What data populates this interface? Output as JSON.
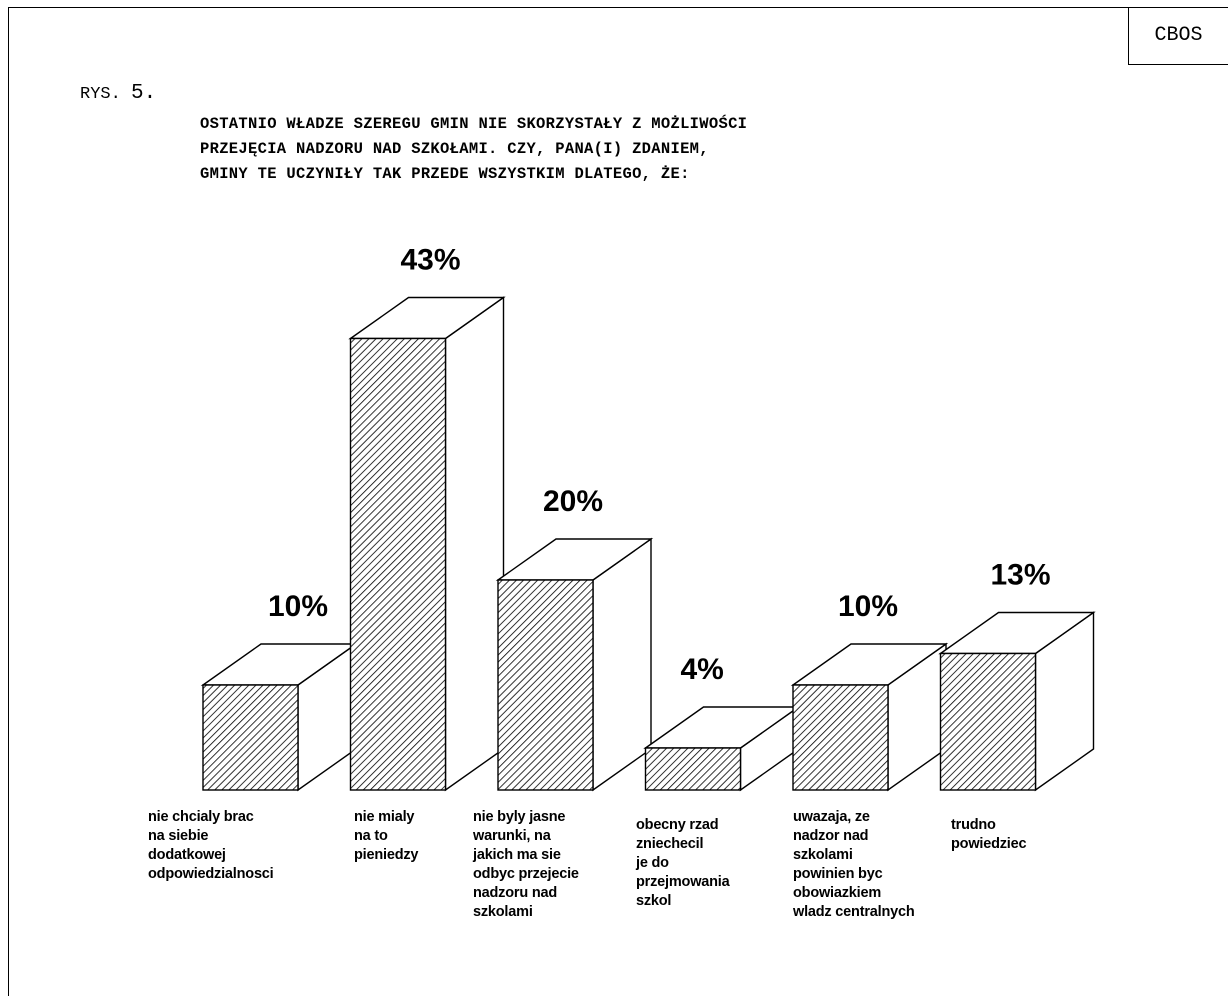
{
  "corner_label": "CBOS",
  "figure_label": "RYS.",
  "figure_number": "5.",
  "question_lines": [
    "OSTATNIO WŁADZE SZEREGU GMIN NIE SKORZYSTAŁY Z MOŻLIWOŚCI",
    "PRZEJĘCIA NADZORU NAD SZKOŁAMI. CZY, PANA(I) ZDANIEM,",
    "GMINY TE UCZYNIŁY TAK PRZEDE WSZYSTKIM DLATEGO, ŻE:"
  ],
  "chart_data": {
    "type": "bar",
    "style": "3d-hatched",
    "unit": "%",
    "categories": [
      [
        "nie chcialy brac",
        "na siebie",
        "dodatkowej",
        "odpowiedzialnosci"
      ],
      [
        "nie mialy",
        "na to",
        "pieniedzy"
      ],
      [
        "nie byly jasne",
        "warunki, na",
        "jakich ma sie",
        "odbyc przejecie",
        "nadzoru nad",
        "szkolami"
      ],
      [
        "obecny rzad",
        "zniechecil",
        "je do",
        "przejmowania",
        "szkol"
      ],
      [
        "uwazaja, ze",
        "nadzor nad",
        "szkolami",
        "powinien byc",
        "obowiazkiem",
        "wladz centralnych"
      ],
      [
        "trudno",
        "powiedziec"
      ]
    ],
    "values": [
      10,
      43,
      20,
      4,
      10,
      13
    ],
    "value_labels": [
      "10%",
      "43%",
      "20%",
      "4%",
      "10%",
      "13%"
    ]
  }
}
